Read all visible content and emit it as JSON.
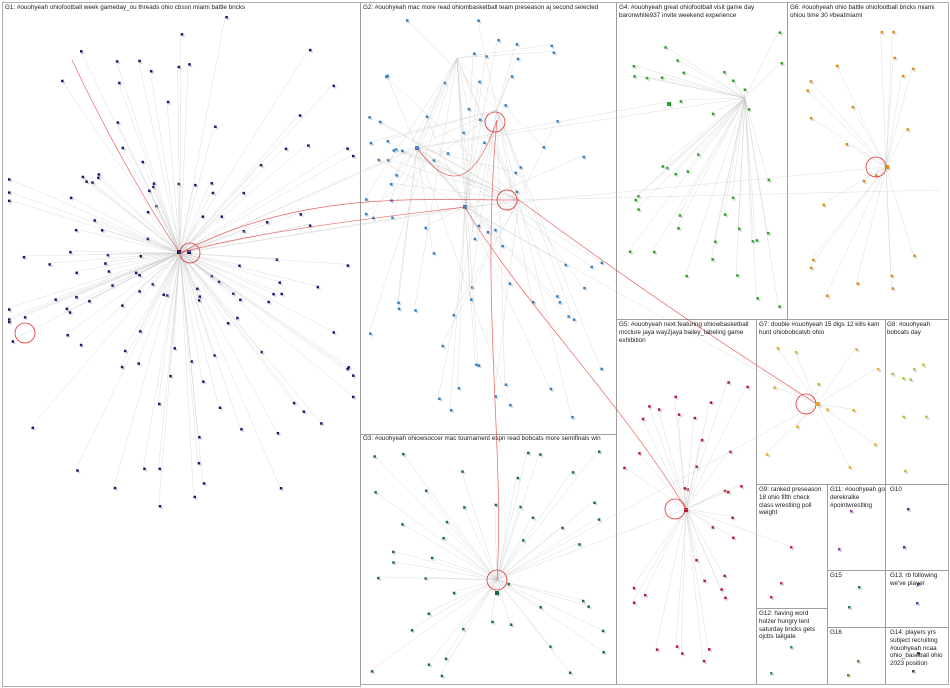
{
  "groups": [
    {
      "id": "G1",
      "label": "G1: #ouohyeah ohiofootball week gameday_ou threads ohio cbssn miami battle bricks",
      "color": "#1a1a6b"
    },
    {
      "id": "G2",
      "label": "G2: #ouohyeah mac more read ohiombasketball team preseason aj second selected",
      "color": "#2e7fc2"
    },
    {
      "id": "G3",
      "label": "G3: #ouohyeah ohiowsoccer mac tournament espn read bobcats more semifinals win",
      "color": "#1e6b4a"
    },
    {
      "id": "G4",
      "label": "G4: #ouohyeah great ohiofootball visit game day baronwhite937 invite weekend experience",
      "color": "#2aa02a"
    },
    {
      "id": "G5",
      "label": "G5: #ouohyeah next featuring ohiowbasketball mcclure jaya way2jaya bailey_labeling game exhibition",
      "color": "#b01c2e"
    },
    {
      "id": "G6",
      "label": "G6: #ouohyeah ohio battle ohiofootball bricks miami ohiou time 30 #beatmiami",
      "color": "#d98a1a"
    },
    {
      "id": "G7",
      "label": "G7: double #ouohyeah 15 digs 12 kills kam hunt ohiobobcatvb ohio",
      "color": "#e0b020"
    },
    {
      "id": "G8",
      "label": "G8: #ouohyeah bobcats day",
      "color": "#9acd32"
    },
    {
      "id": "G9",
      "label": "G9: ranked preseason 18 ohio fifth check class wrestling poll weight",
      "color": "#c0287a"
    },
    {
      "id": "G10",
      "label": "G10",
      "color": "#6a2a8a"
    },
    {
      "id": "G11",
      "label": "G11: #ouohyeah go derekralke #pointwrestling",
      "color": "#8844aa"
    },
    {
      "id": "G12",
      "label": "G12: having word holzer hungry tent saturday bricks gets ojcbs tailgate",
      "color": "#3a8a8a"
    },
    {
      "id": "G13",
      "label": "G13: rb following we've player",
      "color": "#3355aa"
    },
    {
      "id": "G14",
      "label": "G14: players yrs subject recruiting #ouohyeah ncaa ohio_baseball ohio 2023 position",
      "color": "#444444"
    },
    {
      "id": "G15",
      "label": "G15",
      "color": "#2a7a5a"
    },
    {
      "id": "G16",
      "label": "G16",
      "color": "#5a8a2a"
    }
  ]
}
